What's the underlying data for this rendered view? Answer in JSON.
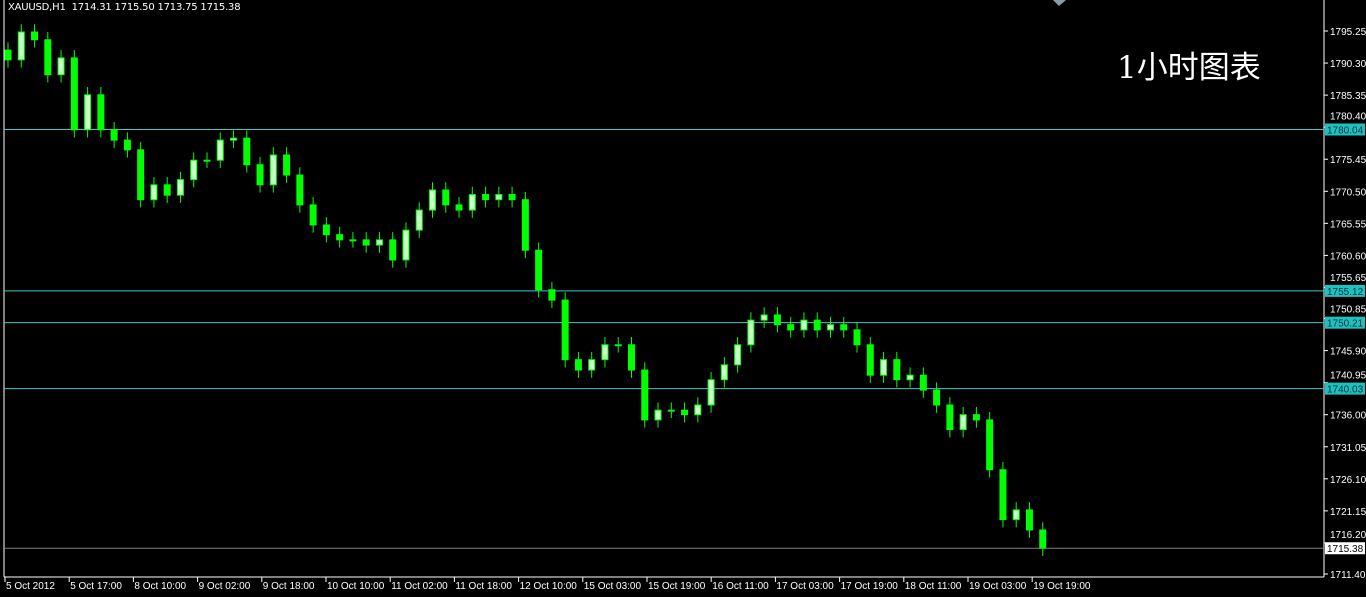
{
  "header": {
    "symbol": "XAUUSD,H1",
    "open": "1714.31",
    "high": "1715.50",
    "low": "1713.75",
    "close": "1715.38"
  },
  "watermark": "1小时图表",
  "colors": {
    "background": "#000000",
    "candle": "#00ff00",
    "candle_up_fill": "#c8ffc8",
    "level_line": "#3cc8c8",
    "level_label_bg": "#20c0c0",
    "current_price_line": "#808080",
    "axis": "#ffffff"
  },
  "chart_data": {
    "type": "candlestick",
    "symbol": "XAUUSD",
    "timeframe": "H1",
    "ylim": [
      1711.4,
      1797.5
    ],
    "y_ticks": [
      "1795.25",
      "1790.30",
      "1785.35",
      "1780.40",
      "1775.45",
      "1770.50",
      "1765.55",
      "1760.60",
      "1755.65",
      "1750.85",
      "1745.90",
      "1740.95",
      "1736.00",
      "1731.05",
      "1726.10",
      "1721.15",
      "1716.20",
      "1711.40"
    ],
    "x_ticks": [
      "5 Oct 2012",
      "5 Oct 17:00",
      "8 Oct 10:00",
      "9 Oct 02:00",
      "9 Oct 18:00",
      "10 Oct 10:00",
      "11 Oct 02:00",
      "11 Oct 18:00",
      "12 Oct 10:00",
      "15 Oct 03:00",
      "15 Oct 19:00",
      "16 Oct 11:00",
      "17 Oct 03:00",
      "17 Oct 19:00",
      "18 Oct 11:00",
      "19 Oct 03:00",
      "19 Oct 19:00"
    ],
    "closes": [
      1790.8,
      1795.1,
      1793.9,
      1788.5,
      1791.1,
      1780.0,
      1785.4,
      1780.0,
      1778.4,
      1776.9,
      1769.2,
      1771.5,
      1769.9,
      1772.3,
      1775.3,
      1775.3,
      1778.4,
      1778.7,
      1774.6,
      1771.5,
      1776.1,
      1773.0,
      1768.4,
      1765.3,
      1763.8,
      1763.0,
      1763.0,
      1762.2,
      1763.0,
      1759.9,
      1764.5,
      1767.6,
      1770.7,
      1768.4,
      1767.6,
      1770.0,
      1769.2,
      1770.0,
      1769.2,
      1761.4,
      1755.3,
      1753.7,
      1744.5,
      1742.9,
      1744.5,
      1746.8,
      1746.8,
      1742.9,
      1735.2,
      1736.7,
      1736.7,
      1736.0,
      1737.5,
      1741.4,
      1743.7,
      1746.8,
      1750.6,
      1751.4,
      1749.9,
      1749.1,
      1750.6,
      1749.1,
      1749.9,
      1749.1,
      1746.8,
      1742.1,
      1744.5,
      1741.4,
      1742.1,
      1739.8,
      1737.5,
      1733.7,
      1736.0,
      1735.2,
      1727.5,
      1719.8,
      1721.3,
      1718.2,
      1715.4
    ],
    "levels": [
      {
        "price": 1780.04,
        "label": "1780.04"
      },
      {
        "price": 1755.12,
        "label": "1755.12"
      },
      {
        "price": 1750.21,
        "label": "1750.21"
      },
      {
        "price": 1740.03,
        "label": "1740.03"
      }
    ],
    "current_price": {
      "price": 1715.38,
      "label": "1715.38"
    },
    "grid": false
  }
}
